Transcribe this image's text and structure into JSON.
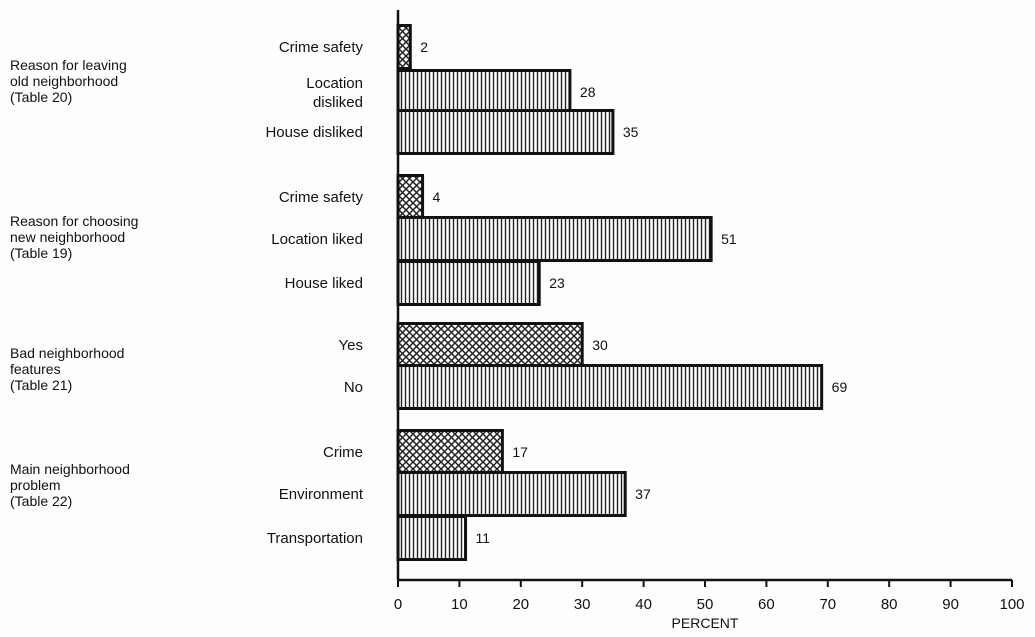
{
  "chart_data": {
    "type": "bar",
    "orientation": "horizontal",
    "xlabel": "PERCENT",
    "xlim": [
      0,
      100
    ],
    "xticks": [
      "0",
      "10",
      "20",
      "30",
      "40",
      "50",
      "60",
      "70",
      "80",
      "90",
      "100"
    ],
    "grid": false,
    "groups": [
      {
        "label": [
          "Reason for leaving",
          "old neighborhood",
          "(Table 20)"
        ],
        "bars": [
          {
            "category": [
              "Crime safety"
            ],
            "value": 2,
            "pattern": "crosshatch"
          },
          {
            "category": [
              "Location",
              "disliked"
            ],
            "value": 28,
            "pattern": "vertical"
          },
          {
            "category": [
              "House disliked"
            ],
            "value": 35,
            "pattern": "vertical"
          }
        ]
      },
      {
        "label": [
          "Reason for choosing",
          "new neighborhood",
          "(Table 19)"
        ],
        "bars": [
          {
            "category": [
              "Crime safety"
            ],
            "value": 4,
            "pattern": "crosshatch"
          },
          {
            "category": [
              "Location liked"
            ],
            "value": 51,
            "pattern": "vertical"
          },
          {
            "category": [
              "House liked"
            ],
            "value": 23,
            "pattern": "vertical"
          }
        ]
      },
      {
        "label": [
          "Bad neighborhood",
          "features",
          "(Table 21)"
        ],
        "bars": [
          {
            "category": [
              "Yes"
            ],
            "value": 30,
            "pattern": "crosshatch"
          },
          {
            "category": [
              "No"
            ],
            "value": 69,
            "pattern": "vertical"
          }
        ]
      },
      {
        "label": [
          "Main neighborhood",
          "problem",
          "(Table 22)"
        ],
        "bars": [
          {
            "category": [
              "Crime"
            ],
            "value": 17,
            "pattern": "crosshatch"
          },
          {
            "category": [
              "Environment"
            ],
            "value": 37,
            "pattern": "vertical"
          },
          {
            "category": [
              "Transportation"
            ],
            "value": 11,
            "pattern": "vertical"
          }
        ]
      }
    ]
  }
}
